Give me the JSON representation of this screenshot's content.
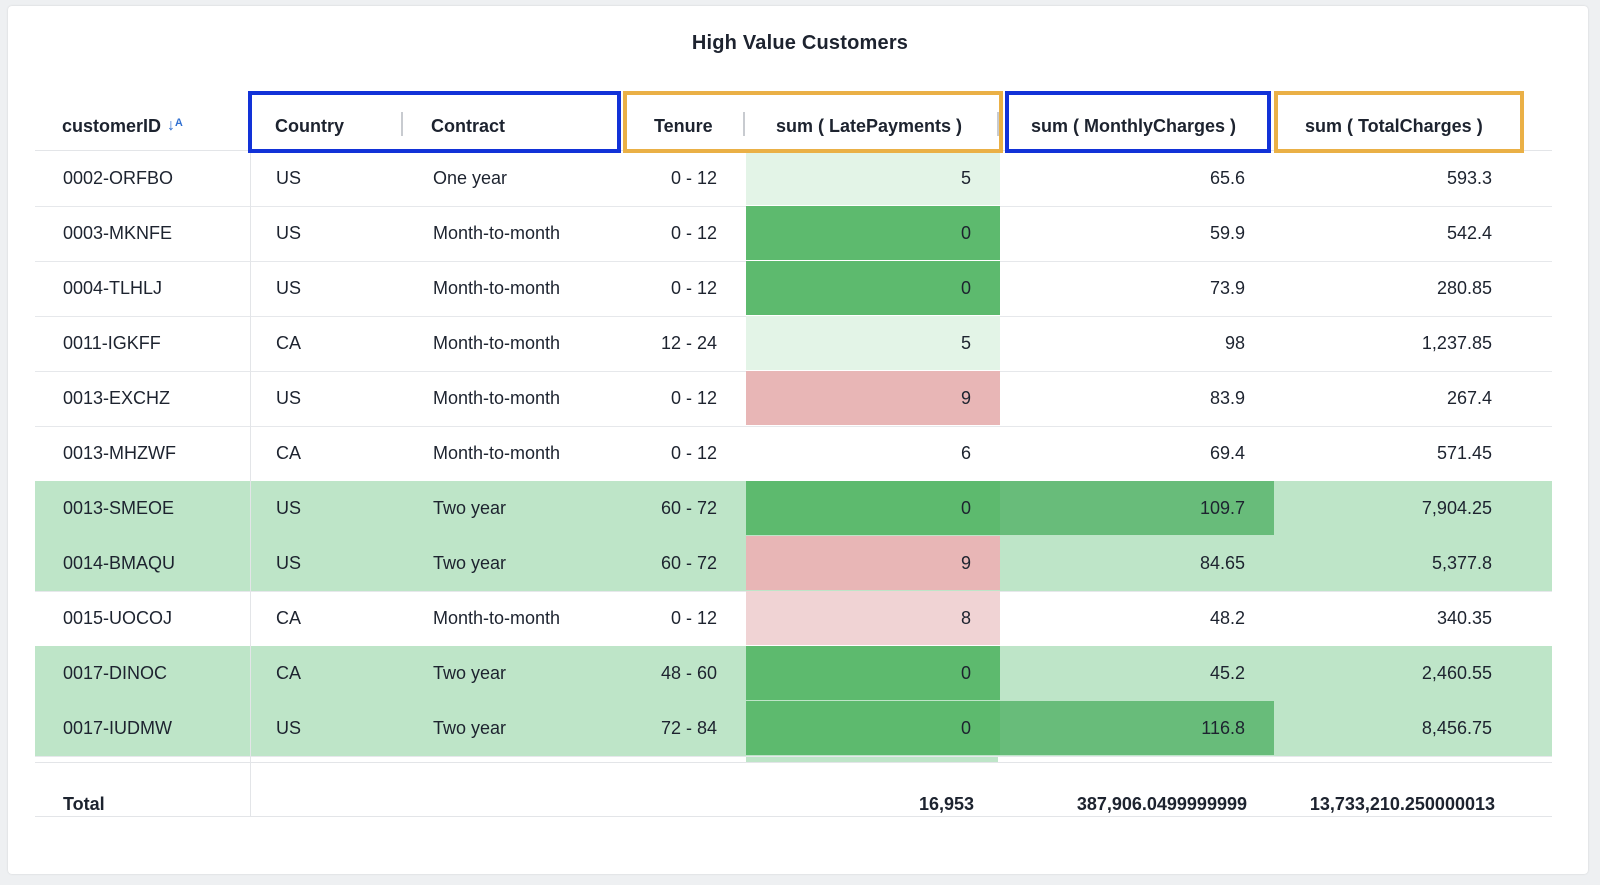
{
  "title": "High Value Customers",
  "columns": {
    "customerID": "customerID",
    "sort_icon": "↓ᴬ",
    "country": "Country",
    "contract": "Contract",
    "tenure": "Tenure",
    "late": "sum ( LatePayments )",
    "monthly": "sum ( MonthlyCharges )",
    "total": "sum ( TotalCharges )"
  },
  "colors": {
    "band_green": "#bee5c8",
    "late_dark_green": "#5dba6e",
    "late_light_green": "#e3f4e7",
    "late_red": "#e8b6b6",
    "late_pink": "#f0d3d4",
    "monthly_dark_green": "#68bc7a",
    "highlight_blue": "#1232d8",
    "highlight_orange": "#eab046"
  },
  "rows": [
    {
      "id": "0002-ORFBO",
      "country": "US",
      "contract": "One year",
      "tenure": "0 - 12",
      "late": "5",
      "monthly": "65.6",
      "total": "593.3",
      "band": false,
      "late_fill": "late_light_green",
      "monthly_fill": ""
    },
    {
      "id": "0003-MKNFE",
      "country": "US",
      "contract": "Month-to-month",
      "tenure": "0 - 12",
      "late": "0",
      "monthly": "59.9",
      "total": "542.4",
      "band": false,
      "late_fill": "late_dark_green",
      "monthly_fill": ""
    },
    {
      "id": "0004-TLHLJ",
      "country": "US",
      "contract": "Month-to-month",
      "tenure": "0 - 12",
      "late": "0",
      "monthly": "73.9",
      "total": "280.85",
      "band": false,
      "late_fill": "late_dark_green",
      "monthly_fill": ""
    },
    {
      "id": "0011-IGKFF",
      "country": "CA",
      "contract": "Month-to-month",
      "tenure": "12 - 24",
      "late": "5",
      "monthly": "98",
      "total": "1,237.85",
      "band": false,
      "late_fill": "late_light_green",
      "monthly_fill": ""
    },
    {
      "id": "0013-EXCHZ",
      "country": "US",
      "contract": "Month-to-month",
      "tenure": "0 - 12",
      "late": "9",
      "monthly": "83.9",
      "total": "267.4",
      "band": false,
      "late_fill": "late_red",
      "monthly_fill": ""
    },
    {
      "id": "0013-MHZWF",
      "country": "CA",
      "contract": "Month-to-month",
      "tenure": "0 - 12",
      "late": "6",
      "monthly": "69.4",
      "total": "571.45",
      "band": false,
      "late_fill": "",
      "monthly_fill": ""
    },
    {
      "id": "0013-SMEOE",
      "country": "US",
      "contract": "Two year",
      "tenure": "60 - 72",
      "late": "0",
      "monthly": "109.7",
      "total": "7,904.25",
      "band": true,
      "late_fill": "late_dark_green",
      "monthly_fill": "monthly_dark_green"
    },
    {
      "id": "0014-BMAQU",
      "country": "US",
      "contract": "Two year",
      "tenure": "60 - 72",
      "late": "9",
      "monthly": "84.65",
      "total": "5,377.8",
      "band": true,
      "late_fill": "late_red",
      "monthly_fill": ""
    },
    {
      "id": "0015-UOCOJ",
      "country": "CA",
      "contract": "Month-to-month",
      "tenure": "0 - 12",
      "late": "8",
      "monthly": "48.2",
      "total": "340.35",
      "band": false,
      "late_fill": "late_pink",
      "monthly_fill": ""
    },
    {
      "id": "0017-DINOC",
      "country": "CA",
      "contract": "Two year",
      "tenure": "48 - 60",
      "late": "0",
      "monthly": "45.2",
      "total": "2,460.55",
      "band": true,
      "late_fill": "late_dark_green",
      "monthly_fill": ""
    },
    {
      "id": "0017-IUDMW",
      "country": "US",
      "contract": "Two year",
      "tenure": "72 - 84",
      "late": "0",
      "monthly": "116.8",
      "total": "8,456.75",
      "band": true,
      "late_fill": "late_dark_green",
      "monthly_fill": "monthly_dark_green"
    }
  ],
  "totals": {
    "label": "Total",
    "late": "16,953",
    "monthly": "387,906.0499999999",
    "total": "13,733,210.250000013"
  }
}
